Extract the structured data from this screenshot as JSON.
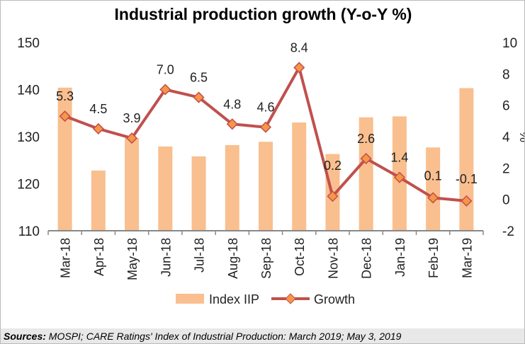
{
  "chart_data": {
    "type": "bar+line",
    "title": "Industrial production growth (Y-o-Y %)",
    "categories": [
      "Mar-18",
      "Apr-18",
      "May-18",
      "Jun-18",
      "Jul-18",
      "Aug-18",
      "Sep-18",
      "Oct-18",
      "Nov-18",
      "Dec-18",
      "Jan-19",
      "Feb-19",
      "Mar-19"
    ],
    "series": [
      {
        "name": "Index IIP",
        "type": "bar",
        "axis": "left",
        "color": "#F9BF8F",
        "values": [
          140.4,
          122.8,
          129.7,
          127.9,
          125.8,
          128.2,
          128.9,
          133.0,
          126.3,
          134.1,
          134.3,
          127.7,
          140.3
        ]
      },
      {
        "name": "Growth",
        "type": "line",
        "axis": "right",
        "color": "#C0504D",
        "marker_color": "#F79646",
        "values": [
          5.3,
          4.5,
          3.9,
          7.0,
          6.5,
          4.8,
          4.6,
          8.4,
          0.2,
          2.6,
          1.4,
          0.1,
          -0.1
        ],
        "labels": [
          "5.3",
          "4.5",
          "3.9",
          "7.0",
          "6.5",
          "4.8",
          "4.6",
          "8.4",
          "0.2",
          "2.6",
          "1.4",
          "0.1",
          "-0.1"
        ]
      }
    ],
    "y_left": {
      "range": [
        110,
        150
      ],
      "ticks": [
        "110",
        "120",
        "130",
        "140",
        "150"
      ]
    },
    "y_right": {
      "label": "%",
      "range": [
        -2,
        10
      ],
      "ticks": [
        "-2",
        "0",
        "2",
        "4",
        "6",
        "8",
        "10"
      ]
    },
    "grid": false,
    "legend": "bottom"
  },
  "source": {
    "label": "Sources:",
    "text": " MOSPI; CARE Ratings' Index of Industrial Production: March 2019; May 3, 2019"
  }
}
